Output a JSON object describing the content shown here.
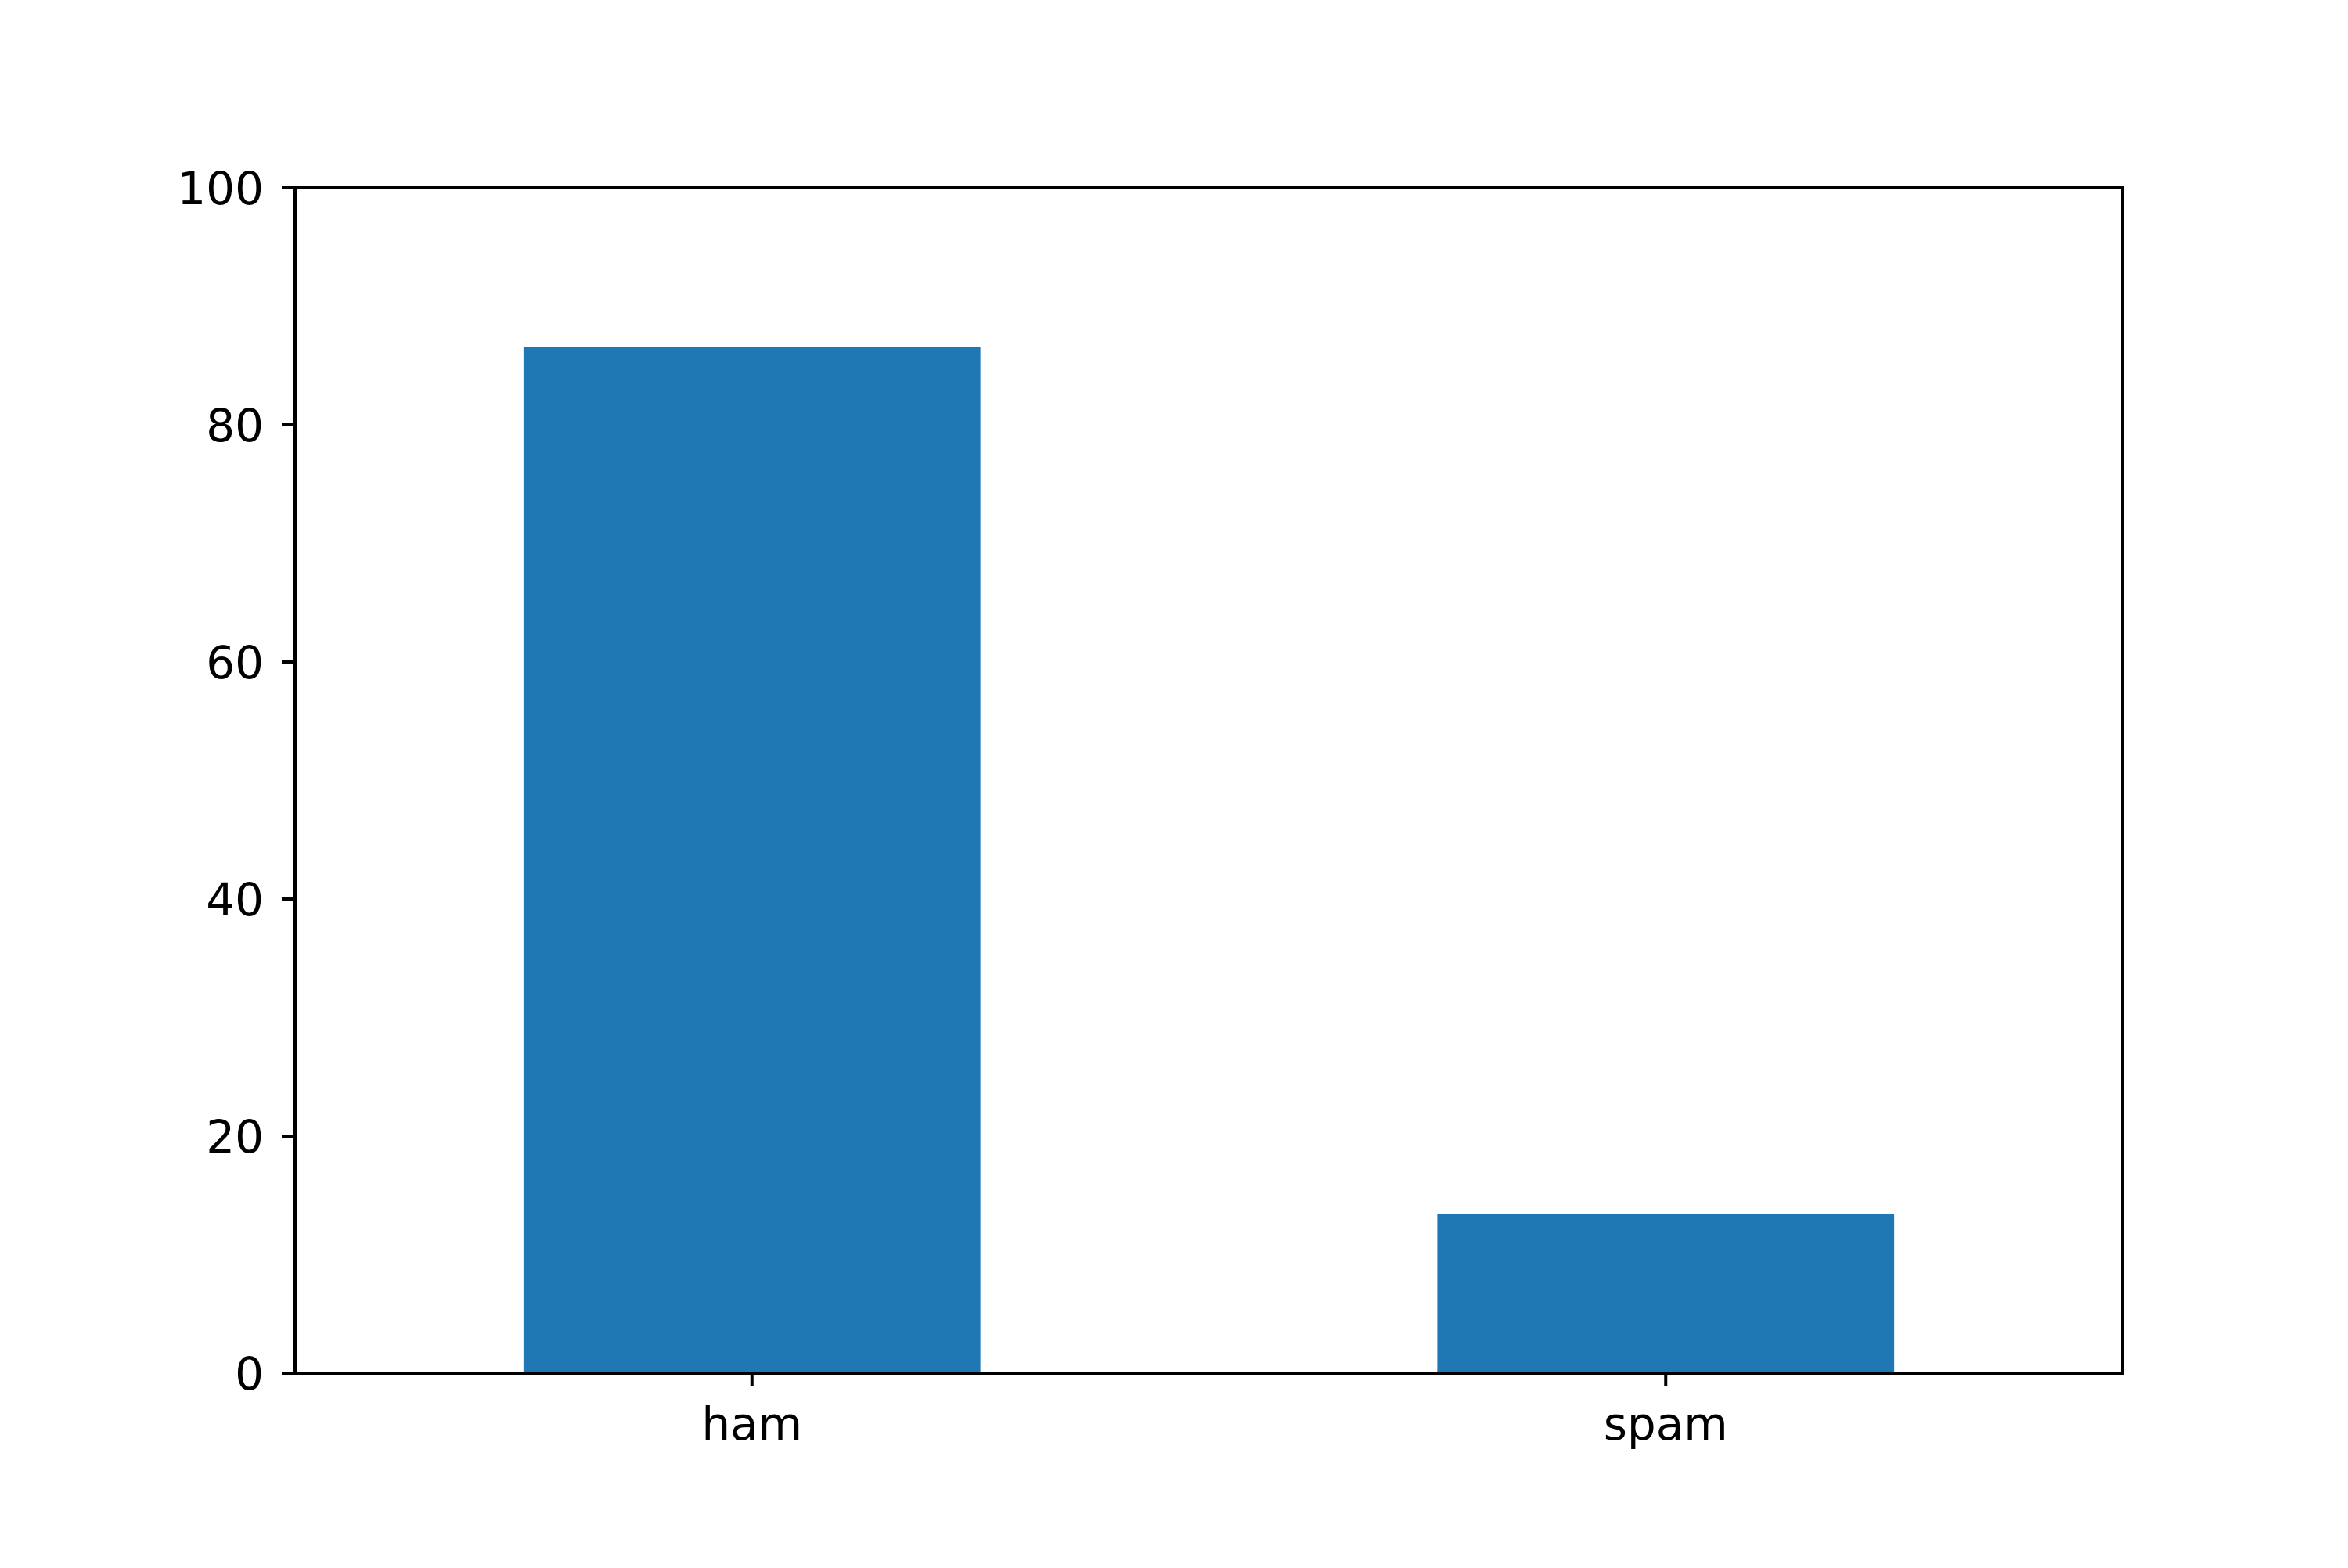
{
  "chart_data": {
    "type": "bar",
    "title": "",
    "xlabel": "",
    "ylabel": "",
    "categories": [
      "ham",
      "spam"
    ],
    "values": [
      86.6,
      13.4
    ],
    "ylim": [
      0,
      100
    ],
    "yticks": [
      0,
      20,
      40,
      60,
      80,
      100
    ],
    "ytick_labels": [
      "0",
      "20",
      "40",
      "60",
      "80",
      "100"
    ],
    "grid": false,
    "legend": "none",
    "bar_color": "#1f77b4"
  }
}
